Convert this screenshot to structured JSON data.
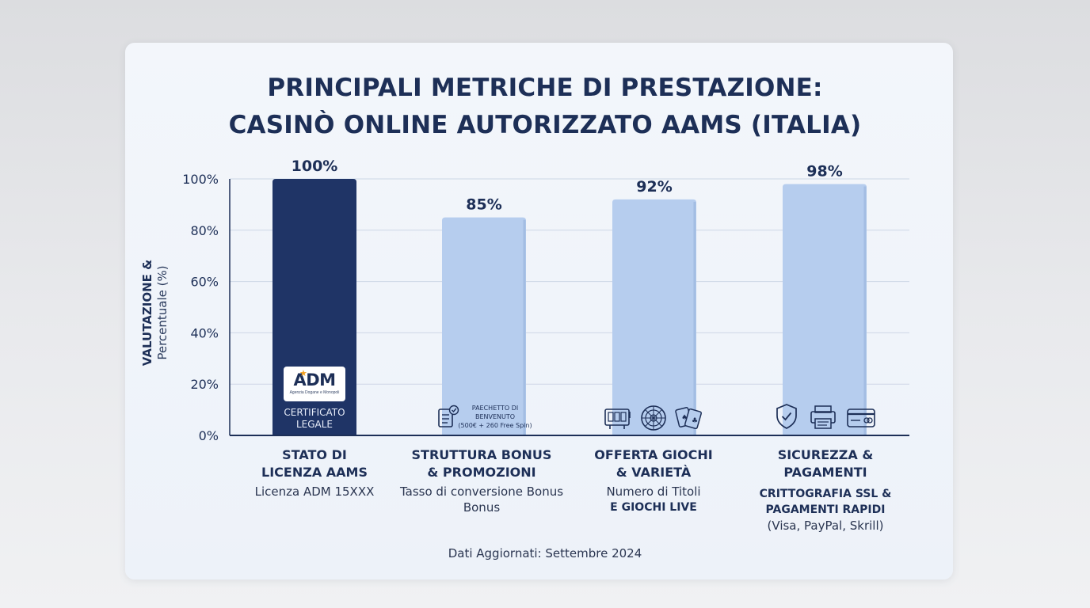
{
  "title_line1": "PRINCIPALI METRICHE DI PRESTAZIONE:",
  "title_line2": "CASINÒ ONLINE AUTORIZZATO AAMS (ITALIA)",
  "ylabel_line1": "VALUTAZIONE &",
  "ylabel_line2": "Percentuale (%)",
  "footer": "Dati Aggiornati: Settembre 2024",
  "colors": {
    "bar_primary": "#1f3466",
    "bar_secondary": "#b6cdee",
    "title": "#1d2f57",
    "grid": "#cdd6e6"
  },
  "chart_data": {
    "type": "bar",
    "ylim": [
      0,
      100
    ],
    "yticks": [
      "0%",
      "20%",
      "40%",
      "60%",
      "80%",
      "100%"
    ],
    "grid": true,
    "categories": [
      {
        "name_line1": "STATO DI",
        "name_line2": "LICENZA AAMS",
        "sub_line1": "Licenza ADM 15XXX",
        "sub_line2": "",
        "sub_line3": ""
      },
      {
        "name_line1": "STRUTTURA BONUS",
        "name_line2": "& PROMOZIONI",
        "sub_line1": "Tasso di conversione Bonus",
        "sub_line2": "Bonus",
        "sub_line3": ""
      },
      {
        "name_line1": "OFFERTA GIOCHI",
        "name_line2": "& VARIETÀ",
        "sub_line1": "Numero di Titoli",
        "sub_line2": "E GIOCHI LIVE",
        "sub_line3": ""
      },
      {
        "name_line1": "SICUREZZA &",
        "name_line2": "PAGAMENTI",
        "sub_line1": "CRITTOGRAFIA SSL &",
        "sub_line2": "PAGAMENTI RAPIDI",
        "sub_line3": "(Visa, PayPal, Skrill)"
      }
    ],
    "values": [
      100,
      85,
      92,
      98
    ],
    "value_labels": [
      "100%",
      "85%",
      "92%",
      "98%"
    ]
  },
  "bar1_badge": {
    "logo_text": "ADM",
    "logo_tagline": "Agenzia Dogane e Monopoli",
    "label_line1": "CERTIFICATO",
    "label_line2": "LEGALE"
  },
  "bar2_badge": {
    "line1": "PAECHETTO DI",
    "line2": "BENVENUTO",
    "line3": "(500€ + 260 Free Spin)"
  },
  "icons": {
    "bar2": [
      "checklist-icon"
    ],
    "bar3": [
      "slot-machine-icon",
      "roulette-icon",
      "playing-cards-icon"
    ],
    "bar4": [
      "shield-check-icon",
      "card-terminal-icon",
      "credit-card-icon"
    ]
  }
}
